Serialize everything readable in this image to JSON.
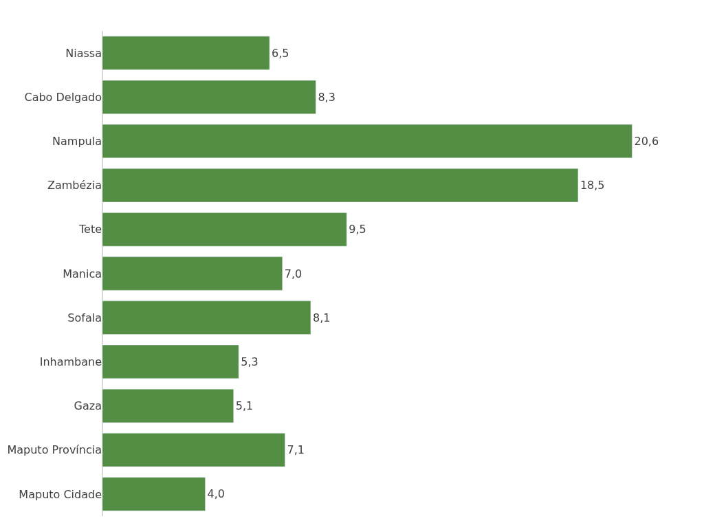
{
  "chart_data": {
    "type": "bar",
    "orientation": "horizontal",
    "categories": [
      "Niassa",
      "Cabo Delgado",
      "Nampula",
      "Zambézia",
      "Tete",
      "Manica",
      "Sofala",
      "Inhambane",
      "Gaza",
      "Maputo Província",
      "Maputo Cidade"
    ],
    "values": [
      6.5,
      8.3,
      20.6,
      18.5,
      9.5,
      7.0,
      8.1,
      5.3,
      5.1,
      7.1,
      4.0
    ],
    "value_labels": [
      "6,5",
      "8,3",
      "20,6",
      "18,5",
      "9,5",
      "7,0",
      "8,1",
      "5,3",
      "5,1",
      "7,1",
      "4,0"
    ],
    "color": "#548e45"
  }
}
